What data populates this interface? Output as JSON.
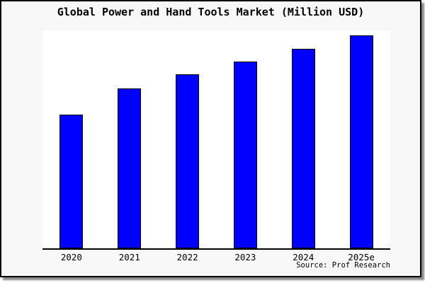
{
  "chart_data": {
    "type": "bar",
    "title": "Global Power and Hand Tools Market (Million USD)",
    "categories": [
      "2020",
      "2021",
      "2022",
      "2023",
      "2024",
      "2025e"
    ],
    "values": [
      61.4,
      73.4,
      79.8,
      85.7,
      91.6,
      97.7
    ],
    "xlabel": "",
    "ylabel": "",
    "ylim": [
      0,
      100
    ],
    "grid": false,
    "legend": false,
    "y_axis_ticks_visible": false,
    "source": "Source: Prof Research"
  },
  "colors": {
    "bar_fill": "#0000ff",
    "bar_border": "#000000",
    "frame_background": "#f8f8f8",
    "plot_background": "#ffffff",
    "axis": "#000000",
    "text": "#000000"
  }
}
